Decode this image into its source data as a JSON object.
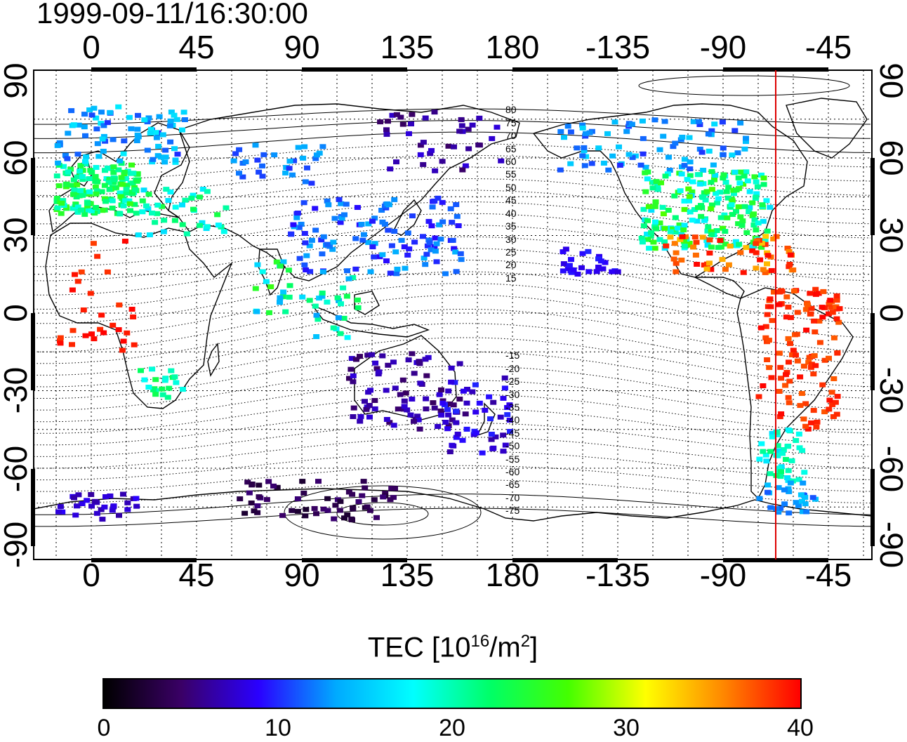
{
  "title": "1999-09-11/16:30:00",
  "x_ticks": [
    "0",
    "45",
    "90",
    "135",
    "180",
    "-135",
    "-90",
    "-45"
  ],
  "y_ticks": [
    "90",
    "60",
    "30",
    "0",
    "-30",
    "-60",
    "-90"
  ],
  "colorbar": {
    "label_main": "TEC  [10",
    "label_exp": "16",
    "label_unit": "/m",
    "label_exp2": "2",
    "label_close": "]",
    "ticks": [
      "0",
      "10",
      "20",
      "30",
      "40"
    ],
    "range": [
      0,
      40
    ],
    "stops": [
      "#000000",
      "#3a0066",
      "#2a00ff",
      "#00aaff",
      "#00ffff",
      "#00ff66",
      "#44ff00",
      "#ffff00",
      "#ff8800",
      "#ff0000"
    ]
  },
  "contour_labels": [
    "80",
    "75",
    "70",
    "65",
    "60",
    "55",
    "50",
    "45",
    "40",
    "35",
    "30",
    "25",
    "20",
    "15",
    "-15",
    "-20",
    "-25",
    "-30",
    "-35",
    "-40",
    "-45",
    "-50",
    "-55",
    "-60",
    "-65",
    "-70",
    "-75"
  ],
  "map": {
    "lon_range": [
      -20,
      340
    ],
    "lat_range": [
      -90,
      90
    ],
    "marker_longitude": -67.5,
    "marker_color": "#dd0000"
  }
}
